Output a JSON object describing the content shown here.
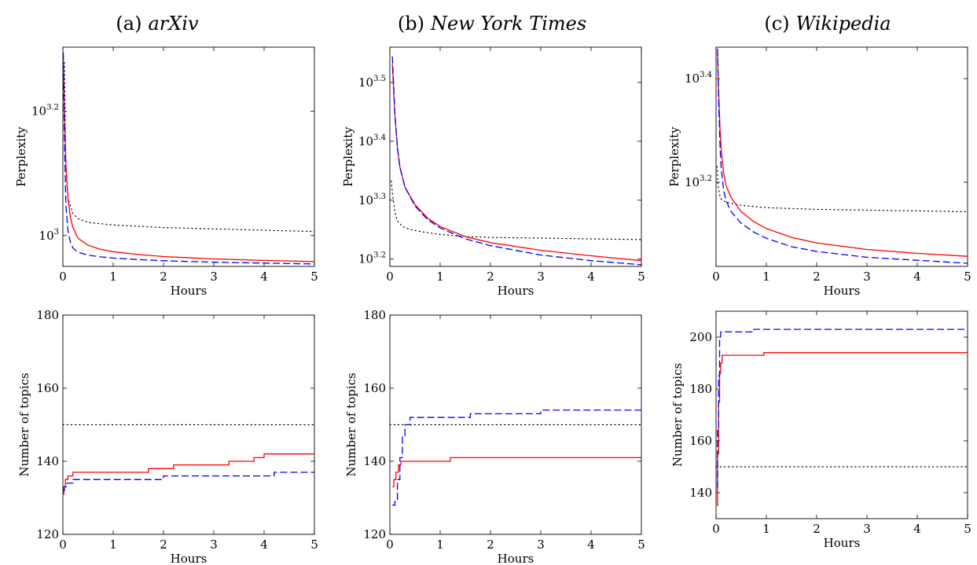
{
  "chart_data": [
    {
      "type": "line",
      "id": "arxiv-perplexity",
      "title_prefix": "(a)",
      "title": "arXiv",
      "xlabel": "Hours",
      "ylabel": "Perplexity",
      "yscale": "log10",
      "xlim": [
        0,
        5
      ],
      "ylim": [
        892,
        2010
      ],
      "xticks": [
        0,
        1,
        2,
        3,
        4,
        5
      ],
      "yticks": [
        1000,
        1585
      ],
      "ytick_labels": [
        {
          "base": "10",
          "exp": "3"
        },
        {
          "base": "10",
          "exp": "3.2"
        }
      ],
      "series": [
        {
          "style": "dotted",
          "color": "#000000",
          "x": [
            0.03,
            0.06,
            0.1,
            0.2,
            0.3,
            0.5,
            1,
            2,
            3,
            4,
            5
          ],
          "y": [
            1900,
            1300,
            1150,
            1085,
            1065,
            1050,
            1040,
            1030,
            1025,
            1020,
            1015
          ]
        },
        {
          "style": "solid",
          "color": "#ff0000",
          "x": [
            0.01,
            0.03,
            0.06,
            0.1,
            0.15,
            0.2,
            0.3,
            0.5,
            0.75,
            1,
            1.5,
            2,
            3,
            4,
            5
          ],
          "y": [
            1920,
            1600,
            1300,
            1150,
            1070,
            1030,
            990,
            965,
            950,
            942,
            932,
            925,
            917,
            912,
            908
          ]
        },
        {
          "style": "dashed",
          "color": "#0000ff",
          "x": [
            0.01,
            0.03,
            0.06,
            0.1,
            0.15,
            0.2,
            0.3,
            0.5,
            0.75,
            1,
            1.5,
            2,
            3,
            4,
            5
          ],
          "y": [
            1970,
            1450,
            1120,
            1020,
            975,
            955,
            940,
            930,
            924,
            920,
            915,
            911,
            906,
            903,
            900
          ]
        }
      ]
    },
    {
      "type": "line",
      "id": "nyt-perplexity",
      "title_prefix": "(b)",
      "title": "New York Times",
      "xlabel": "Hours",
      "ylabel": "Perplexity",
      "yscale": "log10",
      "xlim": [
        0,
        5
      ],
      "ylim": [
        1540,
        3630
      ],
      "xticks": [
        0,
        1,
        2,
        3,
        4,
        5
      ],
      "yticks": [
        1585,
        1995,
        2512,
        3162
      ],
      "ytick_labels": [
        {
          "base": "10",
          "exp": "3.2"
        },
        {
          "base": "10",
          "exp": "3.3"
        },
        {
          "base": "10",
          "exp": "3.4"
        },
        {
          "base": "10",
          "exp": "3.5"
        }
      ],
      "series": [
        {
          "style": "dotted",
          "color": "#000000",
          "x": [
            0.03,
            0.05,
            0.08,
            0.1,
            0.15,
            0.25,
            0.4,
            0.6,
            1,
            1.5,
            2,
            3,
            4,
            5
          ],
          "y": [
            2150,
            2050,
            1970,
            1900,
            1840,
            1800,
            1780,
            1765,
            1745,
            1730,
            1725,
            1720,
            1715,
            1710
          ]
        },
        {
          "style": "solid",
          "color": "#ff0000",
          "x": [
            0.05,
            0.1,
            0.15,
            0.2,
            0.3,
            0.5,
            0.75,
            1,
            1.5,
            2,
            3,
            4,
            5
          ],
          "y": [
            3400,
            2780,
            2450,
            2270,
            2100,
            1960,
            1860,
            1800,
            1730,
            1690,
            1640,
            1605,
            1575
          ]
        },
        {
          "style": "dashed",
          "color": "#0000ff",
          "x": [
            0.05,
            0.1,
            0.15,
            0.2,
            0.3,
            0.5,
            0.75,
            1,
            1.5,
            2,
            3,
            4,
            5
          ],
          "y": [
            3500,
            2800,
            2450,
            2270,
            2100,
            1950,
            1850,
            1790,
            1715,
            1670,
            1610,
            1575,
            1550
          ]
        }
      ]
    },
    {
      "type": "line",
      "id": "wiki-perplexity",
      "title_prefix": "(c)",
      "title": "Wikipedia",
      "xlabel": "Hours",
      "ylabel": "Perplexity",
      "yscale": "log10",
      "xlim": [
        0,
        5
      ],
      "ylim": [
        1090,
        2890
      ],
      "xticks": [
        0,
        1,
        2,
        3,
        4,
        5
      ],
      "yticks": [
        1585,
        2512
      ],
      "ytick_labels": [
        {
          "base": "10",
          "exp": "3.2"
        },
        {
          "base": "10",
          "exp": "3.4"
        }
      ],
      "series": [
        {
          "style": "dotted",
          "color": "#000000",
          "x": [
            0.02,
            0.04,
            0.07,
            0.1,
            0.2,
            0.5,
            1,
            2,
            3,
            4,
            5
          ],
          "y": [
            1700,
            1560,
            1500,
            1470,
            1450,
            1430,
            1415,
            1405,
            1400,
            1395,
            1390
          ]
        },
        {
          "style": "solid",
          "color": "#ff0000",
          "x": [
            0.03,
            0.05,
            0.08,
            0.1,
            0.15,
            0.2,
            0.3,
            0.5,
            0.75,
            1,
            1.5,
            2,
            3,
            4,
            5
          ],
          "y": [
            2820,
            2400,
            2000,
            1850,
            1650,
            1560,
            1480,
            1390,
            1330,
            1290,
            1240,
            1210,
            1175,
            1155,
            1140
          ]
        },
        {
          "style": "dashed",
          "color": "#0000ff",
          "x": [
            0.03,
            0.05,
            0.08,
            0.1,
            0.15,
            0.2,
            0.3,
            0.5,
            0.75,
            1,
            1.5,
            2,
            3,
            4,
            5
          ],
          "y": [
            2870,
            2300,
            1850,
            1700,
            1530,
            1460,
            1390,
            1320,
            1270,
            1235,
            1190,
            1165,
            1135,
            1120,
            1105
          ]
        }
      ]
    },
    {
      "type": "line",
      "id": "arxiv-topics",
      "xlabel": "Hours",
      "ylabel": "Number of topics",
      "xlim": [
        0,
        5
      ],
      "ylim": [
        120,
        180
      ],
      "xticks": [
        0,
        1,
        2,
        3,
        4,
        5
      ],
      "yticks": [
        120,
        140,
        160,
        180
      ],
      "series": [
        {
          "style": "dotted",
          "color": "#000000",
          "x": [
            0,
            5
          ],
          "y": [
            150,
            150
          ]
        },
        {
          "style": "solid",
          "color": "#ff0000",
          "step": true,
          "x": [
            0.01,
            0.02,
            0.05,
            0.1,
            0.2,
            1.7,
            2.2,
            3.3,
            3.8,
            4.0,
            5
          ],
          "y": [
            131,
            133,
            135,
            136,
            137,
            138,
            139,
            140,
            141,
            142,
            142
          ]
        },
        {
          "style": "dashed",
          "color": "#0000ff",
          "step": true,
          "x": [
            0.01,
            0.03,
            0.08,
            0.2,
            2.0,
            4.2,
            5
          ],
          "y": [
            132,
            133,
            134,
            135,
            136,
            137,
            137
          ]
        }
      ]
    },
    {
      "type": "line",
      "id": "nyt-topics",
      "xlabel": "Hours",
      "ylabel": "Number of topics",
      "xlim": [
        0,
        5
      ],
      "ylim": [
        120,
        180
      ],
      "xticks": [
        0,
        1,
        2,
        3,
        4,
        5
      ],
      "yticks": [
        120,
        140,
        160,
        180
      ],
      "series": [
        {
          "style": "dotted",
          "color": "#000000",
          "x": [
            0,
            5
          ],
          "y": [
            150,
            150
          ]
        },
        {
          "style": "solid",
          "color": "#ff0000",
          "step": true,
          "x": [
            0.05,
            0.08,
            0.12,
            0.17,
            0.22,
            1.2,
            5
          ],
          "y": [
            133,
            135,
            137,
            139,
            140,
            141,
            141
          ]
        },
        {
          "style": "dashed",
          "color": "#0000ff",
          "step": true,
          "x": [
            0.05,
            0.1,
            0.15,
            0.2,
            0.25,
            0.3,
            0.4,
            1.6,
            3.0,
            5
          ],
          "y": [
            128,
            129,
            135,
            141,
            147,
            150,
            152,
            153,
            154,
            154
          ]
        }
      ]
    },
    {
      "type": "line",
      "id": "wiki-topics",
      "xlabel": "Hours",
      "ylabel": "Number of topics",
      "xlim": [
        0,
        5
      ],
      "ylim": [
        130,
        210
      ],
      "xticks": [
        0,
        1,
        2,
        3,
        4,
        5
      ],
      "yticks": [
        140,
        160,
        180,
        200
      ],
      "series": [
        {
          "style": "dotted",
          "color": "#000000",
          "x": [
            0,
            5
          ],
          "y": [
            150,
            150
          ]
        },
        {
          "style": "solid",
          "color": "#ff0000",
          "step": true,
          "x": [
            0.02,
            0.03,
            0.05,
            0.07,
            0.09,
            0.12,
            0.95,
            5
          ],
          "y": [
            135,
            155,
            175,
            186,
            190,
            193,
            194,
            194
          ]
        },
        {
          "style": "dashed",
          "color": "#0000ff",
          "step": true,
          "x": [
            0.02,
            0.03,
            0.05,
            0.07,
            0.09,
            0.75,
            5
          ],
          "y": [
            142,
            165,
            185,
            200,
            202,
            203,
            203
          ]
        }
      ]
    }
  ]
}
